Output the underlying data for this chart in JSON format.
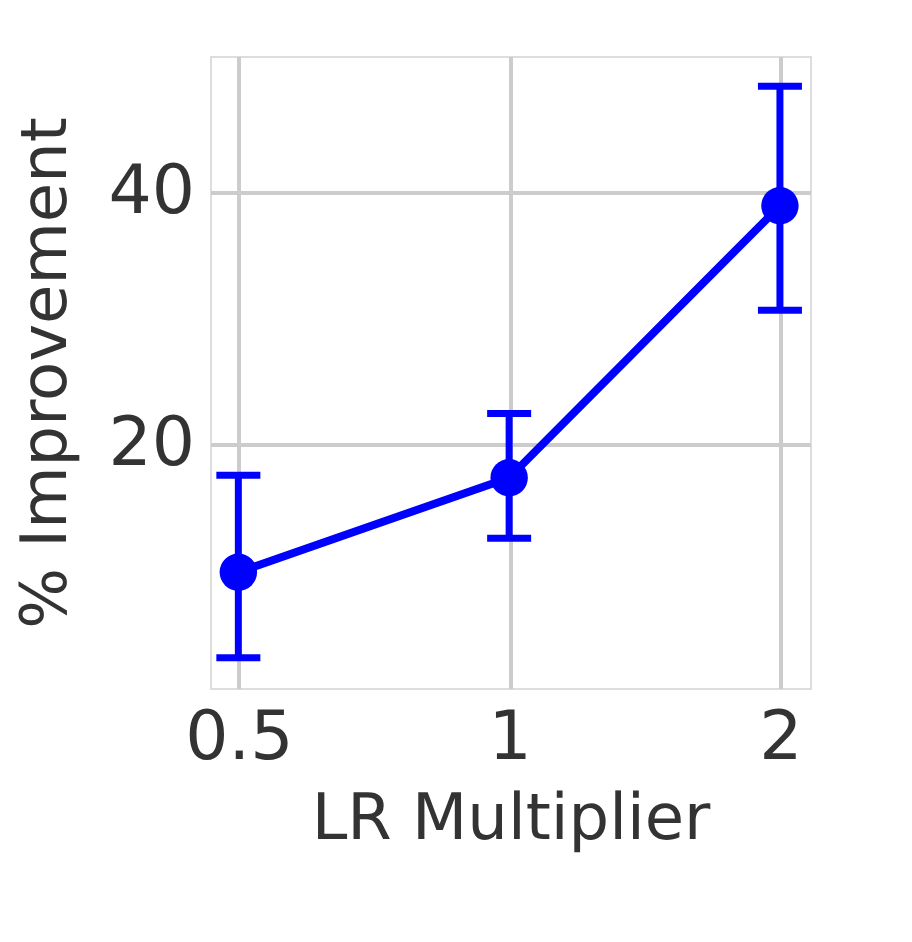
{
  "chart_data": {
    "type": "line",
    "xlabel": "LR Multiplier",
    "ylabel": "% Improvement",
    "x": [
      0.5,
      1,
      2
    ],
    "log": "x",
    "series": [
      {
        "color": "#0000ff",
        "values": [
          9.8,
          17.3,
          38.9
        ],
        "errors": [
          [
            3.0,
            17.5
          ],
          [
            12.5,
            22.4
          ],
          [
            30.6,
            48.4
          ]
        ]
      }
    ],
    "xlim": [
      0.465,
      2.16
    ],
    "xticks": [
      0.5,
      1,
      2
    ],
    "ylim": [
      0.6,
      50.8
    ],
    "yticks": [
      20,
      40
    ],
    "grid": true,
    "marker": "circle",
    "line_style": "solid"
  }
}
